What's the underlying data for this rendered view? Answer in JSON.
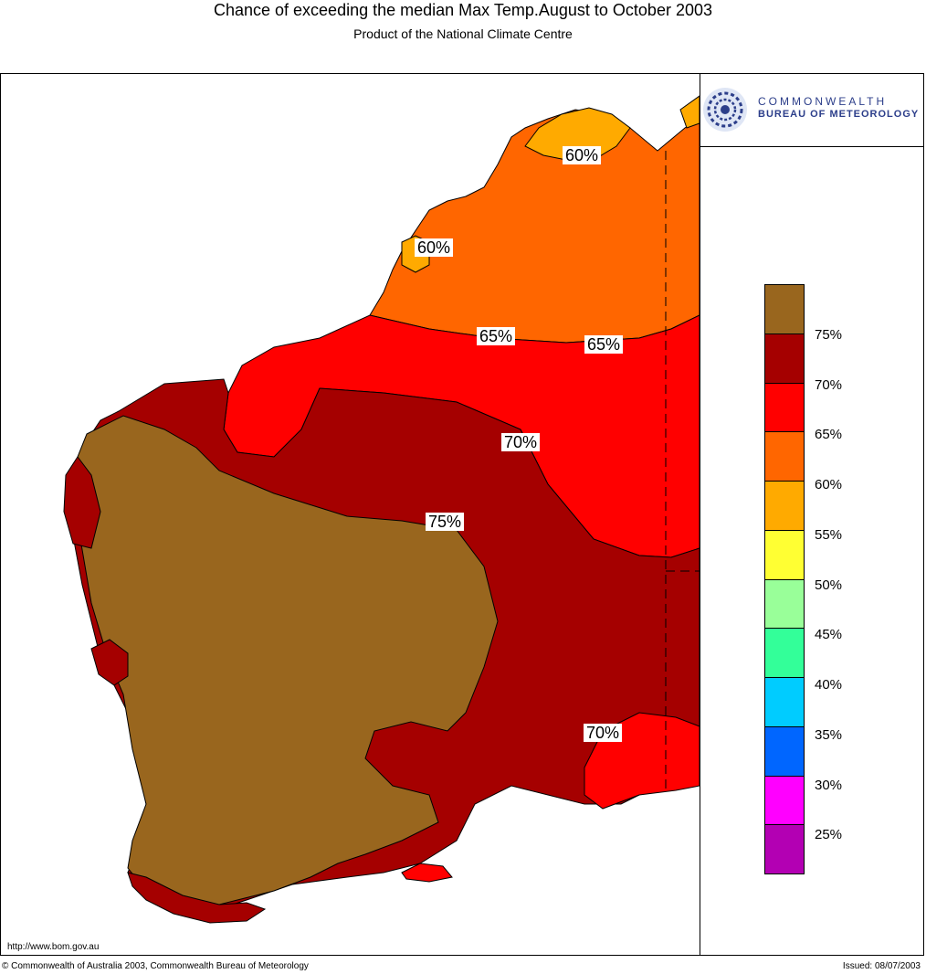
{
  "header": {
    "title": "Chance of exceeding the median Max Temp.August to October 2003",
    "subtitle": "Product of the National Climate Centre"
  },
  "logo": {
    "line1": "COMMONWEALTH",
    "line2": "BUREAU OF METEOROLOGY",
    "icon": "swirl-logo-icon"
  },
  "legend": {
    "entries": [
      {
        "color": "#99661e",
        "label": "75%"
      },
      {
        "color": "#a50000",
        "label": "70%"
      },
      {
        "color": "#ff0000",
        "label": "65%"
      },
      {
        "color": "#ff6600",
        "label": "60%"
      },
      {
        "color": "#ffaa00",
        "label": "55%"
      },
      {
        "color": "#ffff33",
        "label": "50%"
      },
      {
        "color": "#99ff99",
        "label": "45%"
      },
      {
        "color": "#33ff99",
        "label": "40%"
      },
      {
        "color": "#00ccff",
        "label": "35%"
      },
      {
        "color": "#0066ff",
        "label": "30%"
      },
      {
        "color": "#ff00ff",
        "label": "25%"
      },
      {
        "color": "#b300b3",
        "label": ""
      }
    ]
  },
  "map_labels": {
    "kimberley_north": "60%",
    "dampier": "60%",
    "pilbara_mid": "65%",
    "pilbara_east": "65%",
    "central": "70%",
    "southwest_inner": "75%",
    "southeast": "70%"
  },
  "footer": {
    "url": "http://www.bom.gov.au",
    "copyright": "© Commonwealth of Australia 2003, Commonwealth Bureau of Meteorology",
    "issued": "Issued: 08/07/2003"
  }
}
